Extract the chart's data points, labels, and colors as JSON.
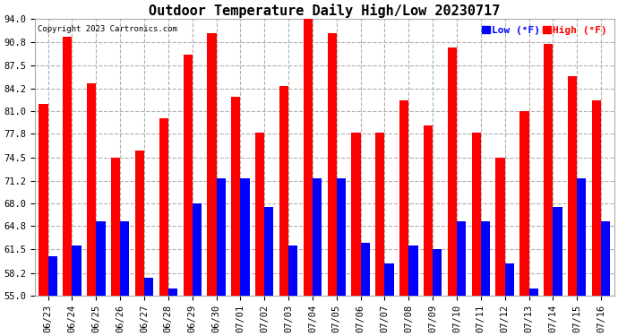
{
  "title": "Outdoor Temperature Daily High/Low 20230717",
  "copyright": "Copyright 2023 Cartronics.com",
  "dates": [
    "06/23",
    "06/24",
    "06/25",
    "06/26",
    "06/27",
    "06/28",
    "06/29",
    "06/30",
    "07/01",
    "07/02",
    "07/03",
    "07/04",
    "07/05",
    "07/06",
    "07/07",
    "07/08",
    "07/09",
    "07/10",
    "07/11",
    "07/12",
    "07/13",
    "07/14",
    "07/15",
    "07/16"
  ],
  "highs": [
    82.0,
    91.5,
    85.0,
    74.5,
    75.5,
    80.0,
    89.0,
    92.0,
    83.0,
    78.0,
    84.5,
    94.0,
    92.0,
    78.0,
    78.0,
    82.5,
    79.0,
    90.0,
    78.0,
    74.5,
    81.0,
    90.5,
    86.0,
    82.5
  ],
  "lows": [
    60.5,
    62.0,
    65.5,
    65.5,
    57.5,
    56.0,
    68.0,
    71.5,
    71.5,
    67.5,
    62.0,
    71.5,
    71.5,
    62.5,
    59.5,
    62.0,
    61.5,
    65.5,
    65.5,
    59.5,
    56.0,
    67.5,
    71.5,
    65.5
  ],
  "ymin": 55.0,
  "ymax": 94.0,
  "yticks": [
    55.0,
    58.2,
    61.5,
    64.8,
    68.0,
    71.2,
    74.5,
    77.8,
    81.0,
    84.2,
    87.5,
    90.8,
    94.0
  ],
  "bar_width": 0.38,
  "high_color": "#ff0000",
  "low_color": "#0000ff",
  "bg_color": "#ffffff",
  "grid_color": "#b0b0b0",
  "title_fontsize": 11,
  "tick_fontsize": 7.5,
  "legend_fontsize": 8,
  "copyright_fontsize": 6.5
}
